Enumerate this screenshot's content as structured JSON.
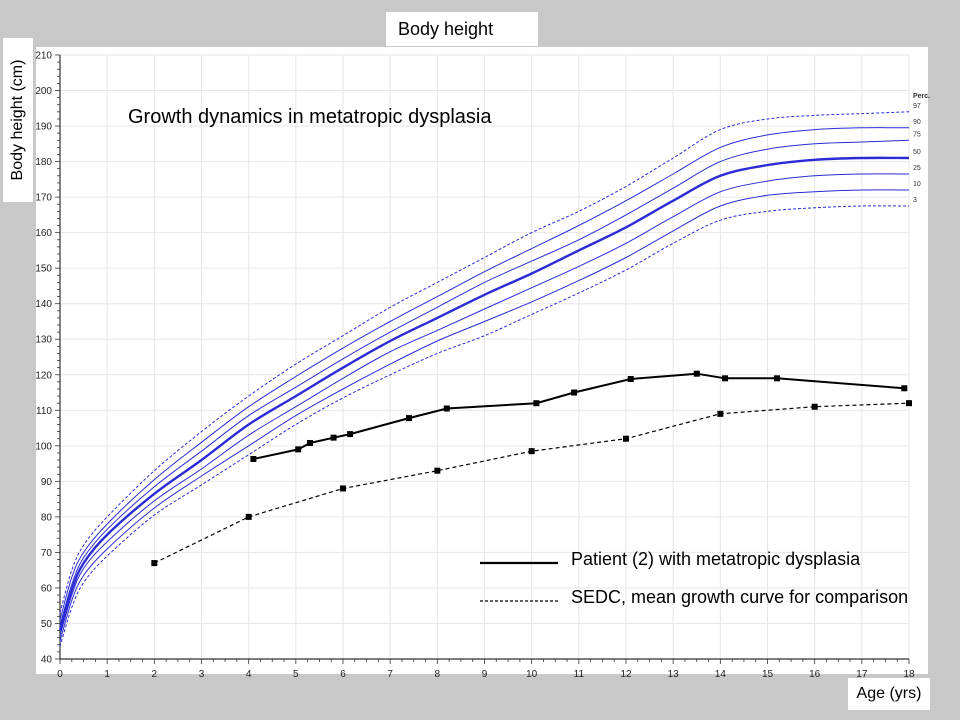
{
  "chart_data": {
    "type": "line",
    "title": "Body height",
    "subtitle": "Growth dynamics in metatropic dysplasia",
    "xlabel": "Age (yrs)",
    "ylabel": "Body height (cm)",
    "xlim": [
      0,
      18
    ],
    "ylim": [
      40,
      210
    ],
    "xticks": [
      0,
      1,
      2,
      3,
      4,
      5,
      6,
      7,
      8,
      9,
      10,
      11,
      12,
      13,
      14,
      15,
      16,
      17,
      18
    ],
    "yticks": [
      40,
      50,
      60,
      70,
      80,
      90,
      100,
      110,
      120,
      130,
      140,
      150,
      160,
      170,
      180,
      190,
      200,
      210
    ],
    "grid": true,
    "percentile_header": "Perc.",
    "percentile_x": [
      0,
      0.25,
      0.5,
      1,
      2,
      3,
      4,
      5,
      6,
      7,
      8,
      9,
      10,
      11,
      12,
      13,
      14,
      15,
      16,
      17,
      18
    ],
    "percentiles": [
      {
        "name": "97",
        "style": "dashed",
        "values": [
          53,
          65,
          72,
          80,
          93,
          104,
          114,
          123,
          131,
          139,
          146,
          153,
          160,
          166,
          173,
          181,
          189,
          192,
          193,
          193.5,
          194
        ]
      },
      {
        "name": "90",
        "style": "thin",
        "values": [
          51,
          63,
          70,
          78,
          90.5,
          101,
          111,
          119.5,
          127.5,
          135,
          142,
          149,
          155.5,
          162,
          169,
          176.5,
          184,
          187.5,
          189,
          189.5,
          189.5
        ]
      },
      {
        "name": "75",
        "style": "thin",
        "values": [
          49.5,
          61,
          68.5,
          76.5,
          88.5,
          98.5,
          108.5,
          116.5,
          124.5,
          132,
          139,
          146,
          152,
          158,
          165,
          172.5,
          180,
          183.5,
          185,
          185.5,
          186
        ]
      },
      {
        "name": "50",
        "style": "bold",
        "values": [
          48,
          59.5,
          67,
          75,
          86.5,
          96,
          106,
          114,
          122,
          129.5,
          136,
          142.5,
          148.5,
          155,
          161.5,
          169,
          176,
          179,
          180.5,
          181,
          181
        ]
      },
      {
        "name": "25",
        "style": "thin",
        "values": [
          46.5,
          58,
          65.5,
          73,
          84.5,
          93.5,
          103,
          111,
          119,
          126.5,
          132.5,
          138.5,
          144.5,
          150.5,
          157,
          164.5,
          171.5,
          174.5,
          176,
          176.5,
          176.5
        ]
      },
      {
        "name": "10",
        "style": "thin",
        "values": [
          45,
          56.5,
          63.5,
          71,
          82.5,
          91.5,
          100,
          108.5,
          116,
          123,
          129.5,
          135,
          140.5,
          146.5,
          153,
          160.5,
          167.5,
          170.5,
          171.5,
          172,
          172
        ]
      },
      {
        "name": "3",
        "style": "dashed",
        "values": [
          43.5,
          54.5,
          61.5,
          69,
          80.5,
          89,
          97.5,
          106,
          113.5,
          120,
          126,
          131,
          137,
          143,
          149.5,
          157,
          163.5,
          166,
          167,
          167.5,
          167.5
        ]
      }
    ],
    "series": [
      {
        "name": "Patient (2) with metatropic dysplasia",
        "style": "solid",
        "x": [
          4.1,
          5.05,
          5.3,
          5.8,
          6.15,
          7.4,
          8.2,
          10.1,
          10.9,
          12.1,
          13.5,
          14.1,
          15.2,
          17.9
        ],
        "y": [
          96.3,
          99,
          100.8,
          102.3,
          103.3,
          107.8,
          110.5,
          112,
          115,
          118.8,
          120.3,
          119,
          119,
          116.2
        ]
      },
      {
        "name": "SEDC, mean growth curve for comparison",
        "style": "dashed",
        "x": [
          2,
          4,
          6,
          8,
          10,
          12,
          14,
          16,
          18
        ],
        "y": [
          67,
          80,
          88,
          93,
          98.5,
          102,
          109,
          111,
          112
        ]
      }
    ]
  }
}
